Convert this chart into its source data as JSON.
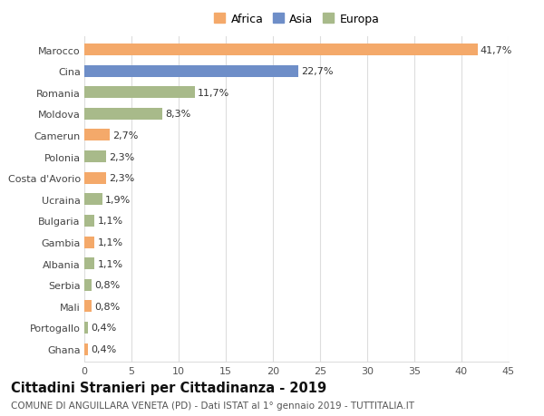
{
  "countries": [
    "Marocco",
    "Cina",
    "Romania",
    "Moldova",
    "Camerun",
    "Polonia",
    "Costa d'Avorio",
    "Ucraina",
    "Bulgaria",
    "Gambia",
    "Albania",
    "Serbia",
    "Mali",
    "Portogallo",
    "Ghana"
  ],
  "values": [
    41.7,
    22.7,
    11.7,
    8.3,
    2.7,
    2.3,
    2.3,
    1.9,
    1.1,
    1.1,
    1.1,
    0.8,
    0.8,
    0.4,
    0.4
  ],
  "labels": [
    "41,7%",
    "22,7%",
    "11,7%",
    "8,3%",
    "2,7%",
    "2,3%",
    "2,3%",
    "1,9%",
    "1,1%",
    "1,1%",
    "1,1%",
    "0,8%",
    "0,8%",
    "0,4%",
    "0,4%"
  ],
  "continents": [
    "Africa",
    "Asia",
    "Europa",
    "Europa",
    "Africa",
    "Europa",
    "Africa",
    "Europa",
    "Europa",
    "Africa",
    "Europa",
    "Europa",
    "Africa",
    "Europa",
    "Africa"
  ],
  "colors": {
    "Africa": "#F4A96A",
    "Asia": "#6E8EC8",
    "Europa": "#A8BA8A"
  },
  "xlim": [
    0,
    45
  ],
  "xticks": [
    0,
    5,
    10,
    15,
    20,
    25,
    30,
    35,
    40,
    45
  ],
  "title": "Cittadini Stranieri per Cittadinanza - 2019",
  "subtitle": "COMUNE DI ANGUILLARA VENETA (PD) - Dati ISTAT al 1° gennaio 2019 - TUTTITALIA.IT",
  "background_color": "#ffffff",
  "grid_color": "#dddddd",
  "bar_height": 0.55,
  "title_fontsize": 10.5,
  "subtitle_fontsize": 7.5,
  "label_fontsize": 8,
  "tick_fontsize": 8,
  "legend_fontsize": 9
}
